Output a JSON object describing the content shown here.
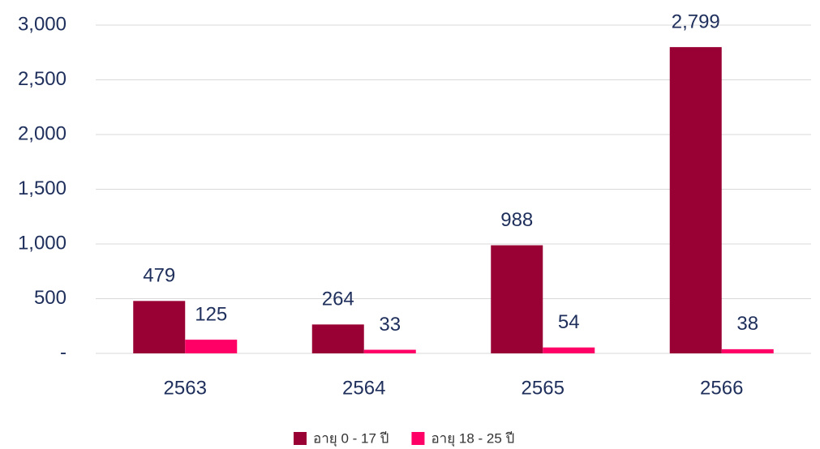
{
  "chart_data": {
    "type": "bar",
    "categories": [
      "2563",
      "2564",
      "2565",
      "2566"
    ],
    "series": [
      {
        "name": "อายุ 0 - 17 ปี",
        "color": "#990033",
        "values": [
          479,
          264,
          988,
          2799
        ],
        "value_labels": [
          "479",
          "264",
          "988",
          "2,799"
        ]
      },
      {
        "name": "อายุ 18 - 25 ปี",
        "color": "#ff0066",
        "values": [
          125,
          33,
          54,
          38
        ]
      }
    ],
    "ylim": [
      0,
      3000
    ],
    "yticks": [
      {
        "value": 0,
        "label": "-"
      },
      500,
      {
        "value": 1000,
        "label": "1,000"
      },
      {
        "value": 1500,
        "label": "1,500"
      },
      {
        "value": 2000,
        "label": "2,000"
      },
      {
        "value": 2500,
        "label": "2,500"
      },
      {
        "value": 3000,
        "label": "3,000"
      }
    ],
    "grid": true,
    "legend": "bottom"
  }
}
